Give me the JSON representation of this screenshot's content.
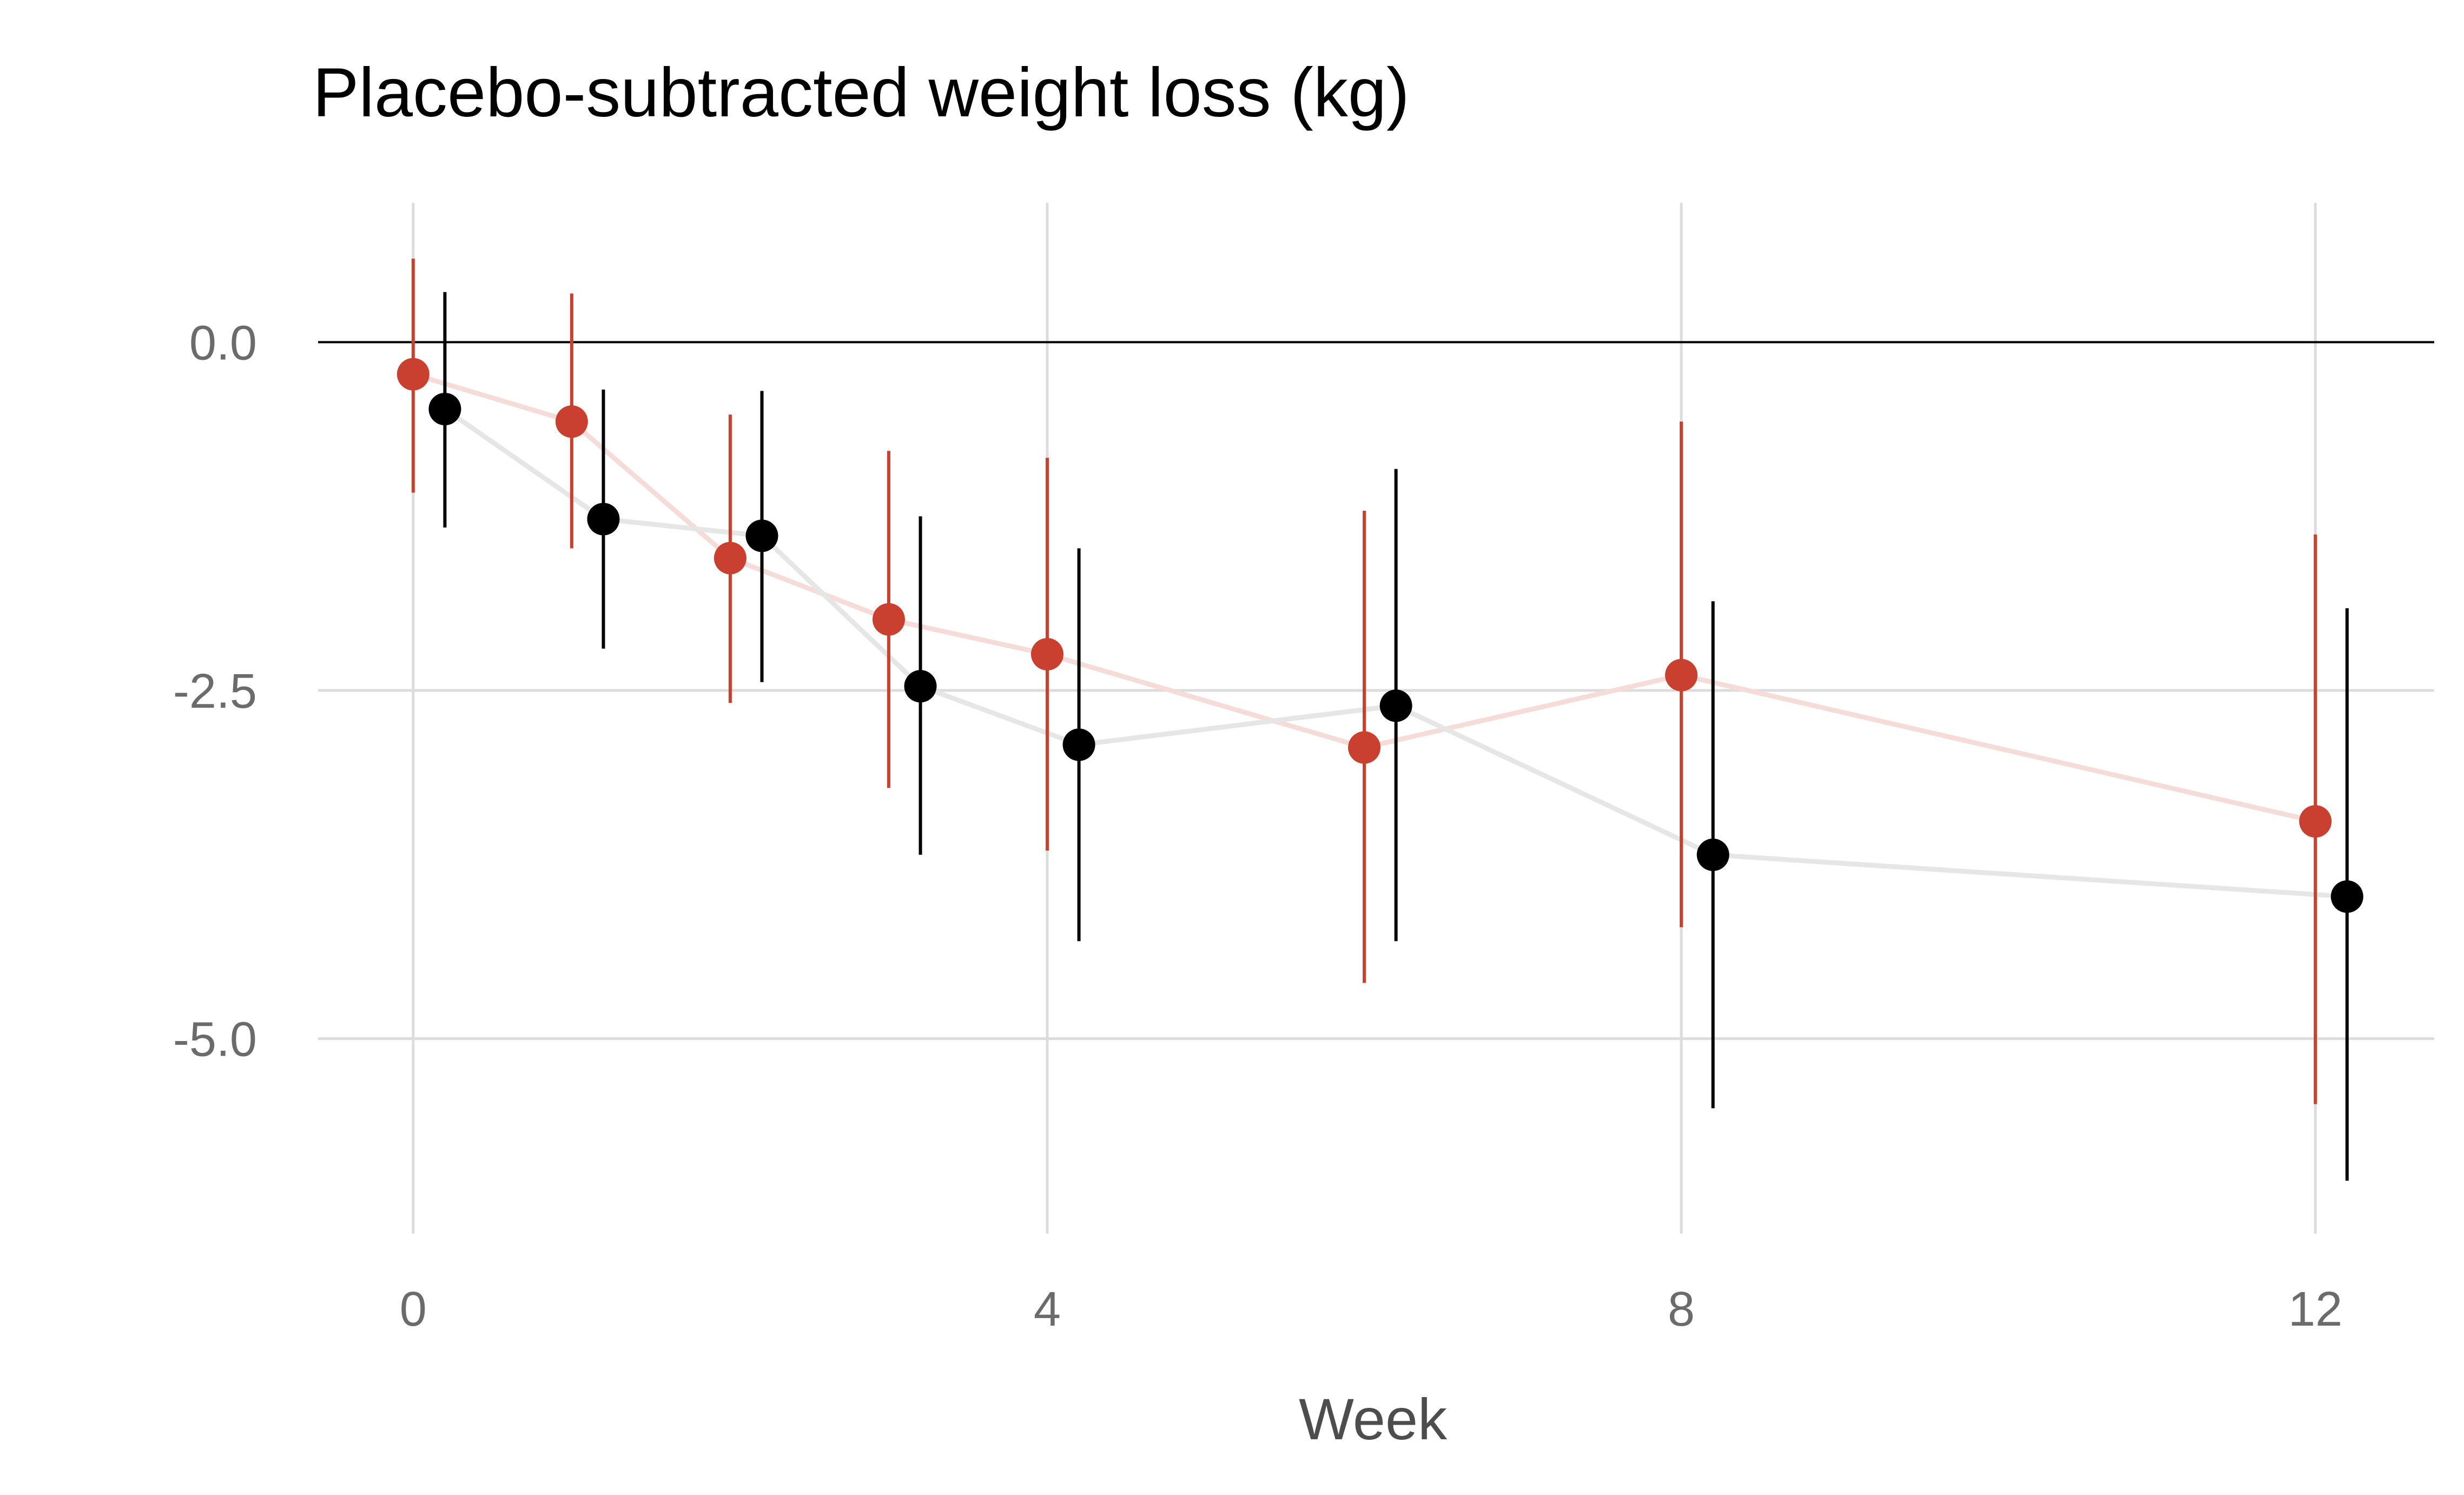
{
  "chart_data": {
    "type": "scatter",
    "title": "Placebo-subtracted weight loss (kg)",
    "xlabel": "Week",
    "ylabel": "",
    "xlim": [
      -0.6,
      12.75
    ],
    "ylim": [
      -6.4,
      1.0
    ],
    "x_ticks": [
      0,
      4,
      8,
      12
    ],
    "x_tick_labels": [
      "0",
      "4",
      "8",
      "12"
    ],
    "y_ticks": [
      0.0,
      -2.5,
      -5.0
    ],
    "y_tick_labels": [
      "0.0",
      "-2.5",
      "-5.0"
    ],
    "reference_line_y": 0,
    "grid": true,
    "legend": "none",
    "series": [
      {
        "color": "#c9402f",
        "line_color": "#f6dcd8",
        "x": [
          0,
          1,
          2,
          3,
          4,
          6,
          8,
          12
        ],
        "values": [
          -0.23,
          -0.57,
          -1.55,
          -1.99,
          -2.24,
          -2.91,
          -2.39,
          -3.44
        ],
        "lower": [
          -1.08,
          -1.48,
          -2.59,
          -3.2,
          -3.65,
          -4.6,
          -4.2,
          -5.47
        ],
        "upper": [
          0.6,
          0.35,
          -0.52,
          -0.78,
          -0.83,
          -1.21,
          -0.57,
          -1.38
        ]
      },
      {
        "color": "#000000",
        "line_color": "#e6e6e6",
        "x": [
          0.2,
          1.2,
          2.2,
          3.2,
          4.2,
          6.2,
          8.2,
          12.2
        ],
        "values": [
          -0.48,
          -1.27,
          -1.39,
          -2.47,
          -2.89,
          -2.61,
          -3.68,
          -3.98
        ],
        "lower": [
          -1.33,
          -2.2,
          -2.44,
          -3.68,
          -4.3,
          -4.3,
          -5.5,
          -6.02
        ],
        "upper": [
          0.36,
          -0.34,
          -0.35,
          -1.25,
          -1.48,
          -0.91,
          -1.86,
          -1.91
        ]
      }
    ]
  }
}
